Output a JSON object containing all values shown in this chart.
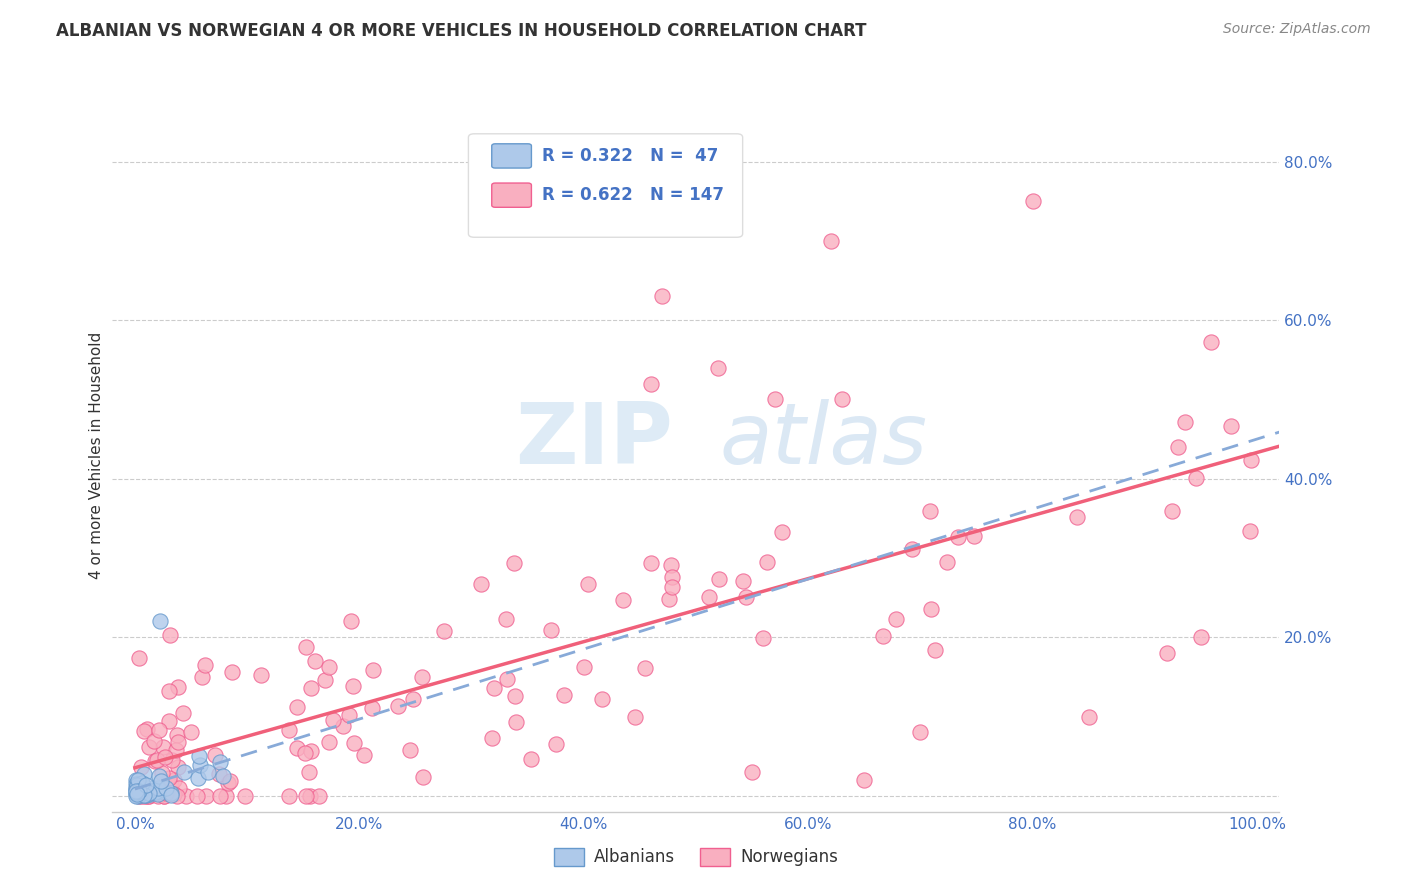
{
  "title": "ALBANIAN VS NORWEGIAN 4 OR MORE VEHICLES IN HOUSEHOLD CORRELATION CHART",
  "source": "Source: ZipAtlas.com",
  "ylabel": "4 or more Vehicles in Household",
  "xlim": [
    -0.02,
    1.02
  ],
  "ylim": [
    -0.02,
    0.88
  ],
  "xtick_vals": [
    0.0,
    0.2,
    0.4,
    0.6,
    0.8,
    1.0
  ],
  "xtick_labels": [
    "0.0%",
    "20.0%",
    "40.0%",
    "60.0%",
    "80.0%",
    "100.0%"
  ],
  "ytick_vals": [
    0.0,
    0.2,
    0.4,
    0.6,
    0.8
  ],
  "ytick_right_labels": [
    "",
    "20.0%",
    "40.0%",
    "60.0%",
    "80.0%"
  ],
  "albanian_color": "#aec9ea",
  "albanian_edge": "#6699cc",
  "norwegian_color": "#f9afc0",
  "norwegian_edge": "#f06090",
  "trendline_albanian_color": "#88aad8",
  "trendline_norwegian_color": "#f0607a",
  "R_albanian": 0.322,
  "N_albanian": 47,
  "R_norwegian": 0.622,
  "N_norwegian": 147,
  "legend_label_albanian": "Albanians",
  "legend_label_norwegian": "Norwegians",
  "watermark_zip": "ZIP",
  "watermark_atlas": "atlas",
  "seed": 99
}
